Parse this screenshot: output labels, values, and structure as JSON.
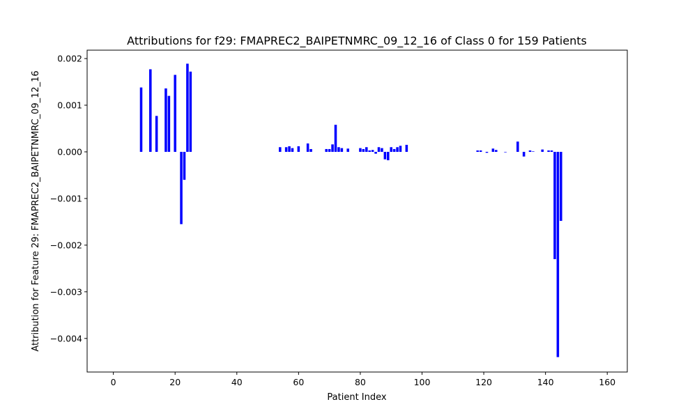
{
  "chart_data": {
    "type": "bar",
    "title": "Attributions for f29: FMAPREC2_BAIPETNMRC_09_12_16 of Class 0 for 159 Patients",
    "xlabel": "Patient Index",
    "ylabel": "Attribution for Feature 29: FMAPREC2_BAIPETNMRC_09_12_16",
    "xlim": [
      -8.5,
      166.5
    ],
    "ylim": [
      -0.00472,
      0.00218
    ],
    "xticks": [
      0,
      20,
      40,
      60,
      80,
      100,
      120,
      140,
      160
    ],
    "xtick_labels": [
      "0",
      "20",
      "40",
      "60",
      "80",
      "100",
      "120",
      "140",
      "160"
    ],
    "yticks": [
      -0.004,
      -0.003,
      -0.002,
      -0.001,
      0.0,
      0.001,
      0.002
    ],
    "ytick_labels": [
      "−0.004",
      "−0.003",
      "−0.002",
      "−0.001",
      "0.000",
      "0.001",
      "0.002"
    ],
    "bar_color": "#0000ff",
    "grid": false,
    "x": [
      9,
      12,
      14,
      17,
      18,
      20,
      22,
      23,
      24,
      25,
      54,
      56,
      57,
      58,
      60,
      63,
      64,
      69,
      70,
      71,
      72,
      73,
      74,
      76,
      80,
      81,
      82,
      83,
      84,
      85,
      86,
      87,
      88,
      89,
      90,
      91,
      92,
      93,
      95,
      118,
      119,
      121,
      123,
      124,
      127,
      131,
      133,
      135,
      136,
      139,
      141,
      142,
      143,
      144,
      145
    ],
    "values": [
      0.00138,
      0.00177,
      0.00077,
      0.00136,
      0.0012,
      0.00165,
      -0.00155,
      -0.0006,
      0.00189,
      0.00172,
      0.0001,
      0.0001,
      0.00012,
      8e-05,
      0.00012,
      0.00018,
      6e-05,
      6e-05,
      6e-05,
      0.00016,
      0.00058,
      0.0001,
      8e-05,
      7e-05,
      8e-05,
      6e-05,
      0.0001,
      3e-05,
      4e-05,
      -4e-05,
      0.0001,
      8e-05,
      -0.00016,
      -0.00018,
      0.0001,
      6e-05,
      0.0001,
      0.00013,
      0.00015,
      3e-05,
      3e-05,
      -2e-05,
      7e-05,
      4e-05,
      -1e-05,
      0.00022,
      -0.0001,
      3e-05,
      1e-05,
      5e-05,
      3e-05,
      3e-05,
      -0.0023,
      -0.0044,
      -0.00148
    ]
  }
}
